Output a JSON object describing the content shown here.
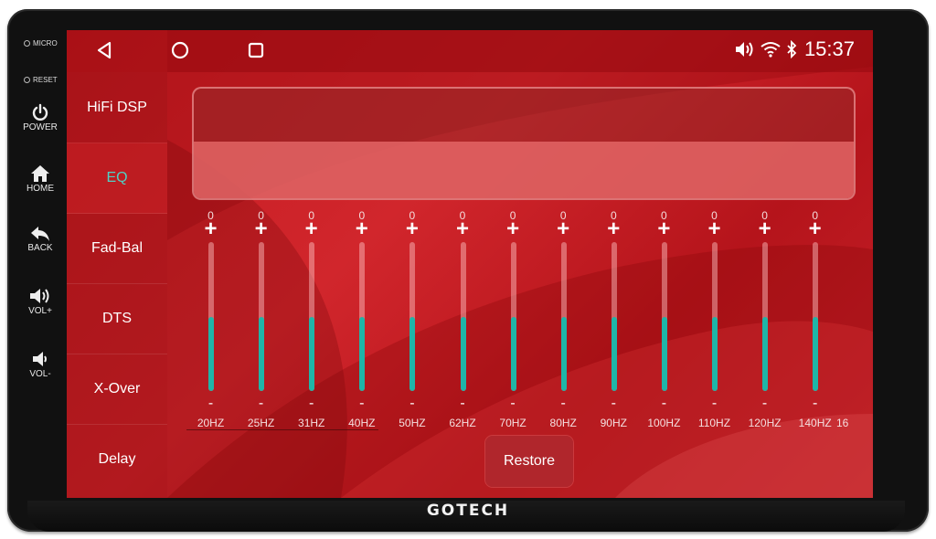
{
  "device": {
    "brand": "GOTECH",
    "buttons": [
      {
        "id": "micro",
        "label": "MICRO"
      },
      {
        "id": "reset",
        "label": "RESET"
      },
      {
        "id": "power",
        "label": "POWER",
        "icon": "power-icon"
      },
      {
        "id": "home",
        "label": "HOME",
        "icon": "home-icon"
      },
      {
        "id": "back",
        "label": "BACK",
        "icon": "back-icon"
      },
      {
        "id": "vol_up",
        "label": "VOL+",
        "icon": "volume-up-icon"
      },
      {
        "id": "vol_down",
        "label": "VOL-",
        "icon": "volume-down-icon"
      }
    ]
  },
  "status_bar": {
    "time": "15:37",
    "icons": [
      "volume-icon",
      "wifi-icon",
      "bluetooth-icon"
    ]
  },
  "nav": {
    "icons": [
      "back-triangle-icon",
      "home-circle-icon",
      "recents-square-icon"
    ]
  },
  "sidebar": {
    "items": [
      {
        "label": "HiFi DSP",
        "active": false
      },
      {
        "label": "EQ",
        "active": true
      },
      {
        "label": "Fad-Bal",
        "active": false
      },
      {
        "label": "DTS",
        "active": false
      },
      {
        "label": "X-Over",
        "active": false
      },
      {
        "label": "Delay",
        "active": false
      }
    ]
  },
  "equalizer": {
    "plus_label": "+",
    "minus_label": "-",
    "bands": [
      {
        "freq": "20HZ",
        "value": "0",
        "level": 0.5
      },
      {
        "freq": "25HZ",
        "value": "0",
        "level": 0.5
      },
      {
        "freq": "31HZ",
        "value": "0",
        "level": 0.5
      },
      {
        "freq": "40HZ",
        "value": "0",
        "level": 0.5
      },
      {
        "freq": "50HZ",
        "value": "0",
        "level": 0.5
      },
      {
        "freq": "62HZ",
        "value": "0",
        "level": 0.5
      },
      {
        "freq": "70HZ",
        "value": "0",
        "level": 0.5
      },
      {
        "freq": "80HZ",
        "value": "0",
        "level": 0.5
      },
      {
        "freq": "90HZ",
        "value": "0",
        "level": 0.5
      },
      {
        "freq": "100HZ",
        "value": "0",
        "level": 0.5
      },
      {
        "freq": "110HZ",
        "value": "0",
        "level": 0.5
      },
      {
        "freq": "120HZ",
        "value": "0",
        "level": 0.5
      },
      {
        "freq": "140HZ",
        "value": "0",
        "level": 0.5
      }
    ],
    "partial_next_freq": "16",
    "restore_label": "Restore"
  },
  "colors": {
    "accent": "#1fb5a8",
    "active_text": "#4fd1c5",
    "screen_red": "#c21a20"
  }
}
